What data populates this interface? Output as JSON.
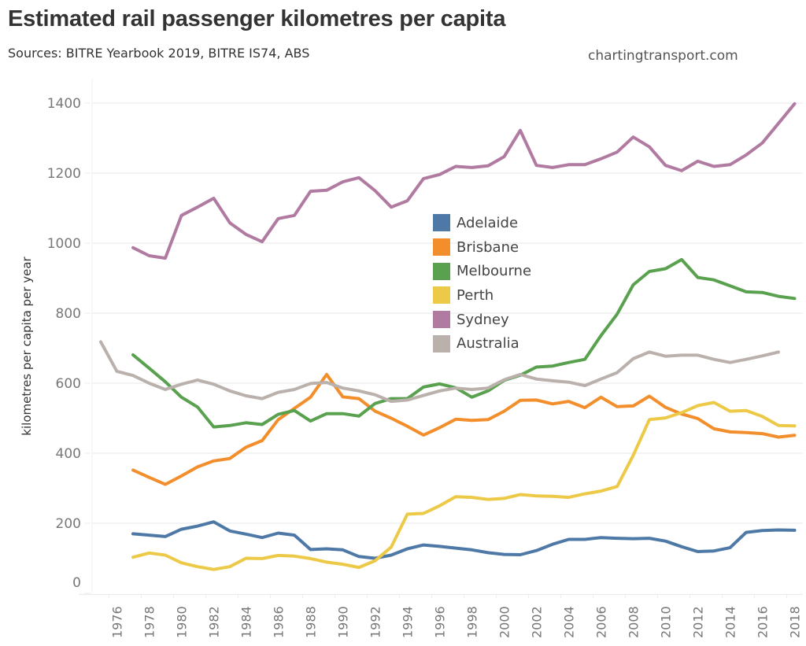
{
  "header": {
    "title": "Estimated rail passenger kilometres per capita",
    "subtitle": "Sources: BITRE Yearbook 2019, BITRE IS74, ABS",
    "credit": "chartingtransport.com"
  },
  "chart_data": {
    "type": "line",
    "title": "Estimated rail passenger kilometres per capita",
    "subtitle": "Sources: BITRE Yearbook 2019, BITRE IS74, ABS",
    "xlabel": "",
    "ylabel": "kilometres per capita per year",
    "xlim": [
      1975,
      2018
    ],
    "ylim": [
      0,
      1400
    ],
    "yticks": [
      0,
      200,
      400,
      600,
      800,
      1000,
      1200,
      1400
    ],
    "xticks": [
      1976,
      1978,
      1980,
      1982,
      1984,
      1986,
      1988,
      1990,
      1992,
      1994,
      1996,
      1998,
      2000,
      2002,
      2004,
      2006,
      2008,
      2010,
      2012,
      2014,
      2016,
      2018
    ],
    "grid": "horizontal",
    "legend_position": "center",
    "series": [
      {
        "name": "Adelaide",
        "color": "#4E79A7",
        "start_year": 1977,
        "values": [
          170,
          166,
          162,
          183,
          192,
          204,
          178,
          169,
          159,
          172,
          166,
          125,
          127,
          124,
          105,
          100,
          109,
          127,
          138,
          134,
          129,
          124,
          116,
          111,
          110,
          122,
          140,
          154,
          154,
          159,
          157,
          156,
          157,
          149,
          133,
          119,
          121,
          130,
          174,
          179,
          181,
          180
        ]
      },
      {
        "name": "Brisbane",
        "color": "#F28E2B",
        "start_year": 1977,
        "values": [
          352,
          331,
          311,
          335,
          361,
          378,
          385,
          417,
          436,
          496,
          528,
          560,
          625,
          561,
          556,
          520,
          500,
          477,
          452,
          473,
          497,
          494,
          496,
          520,
          551,
          552,
          541,
          548,
          530,
          560,
          533,
          535,
          563,
          531,
          512,
          499,
          470,
          461,
          459,
          456,
          446,
          451
        ]
      },
      {
        "name": "Melbourne",
        "color": "#59A14F",
        "start_year": 1977,
        "values": [
          681,
          643,
          604,
          560,
          532,
          475,
          479,
          487,
          482,
          511,
          522,
          492,
          513,
          513,
          506,
          542,
          556,
          556,
          589,
          598,
          587,
          560,
          578,
          608,
          623,
          646,
          649,
          659,
          668,
          736,
          797,
          881,
          919,
          927,
          953,
          902,
          895,
          878,
          861,
          859,
          848,
          842
        ]
      },
      {
        "name": "Perth",
        "color": "#EDC948",
        "start_year": 1977,
        "values": [
          103,
          115,
          109,
          87,
          76,
          68,
          76,
          100,
          99,
          108,
          106,
          99,
          89,
          83,
          74,
          93,
          132,
          226,
          228,
          250,
          276,
          274,
          268,
          271,
          282,
          278,
          277,
          274,
          284,
          292,
          305,
          394,
          496,
          501,
          516,
          536,
          545,
          520,
          522,
          505,
          479,
          478
        ]
      },
      {
        "name": "Sydney",
        "color": "#B07AA1",
        "start_year": 1977,
        "values": [
          987,
          964,
          957,
          1079,
          1103,
          1128,
          1058,
          1025,
          1004,
          1070,
          1079,
          1148,
          1151,
          1175,
          1187,
          1150,
          1103,
          1121,
          1184,
          1196,
          1219,
          1216,
          1221,
          1247,
          1322,
          1222,
          1216,
          1224,
          1224,
          1241,
          1260,
          1303,
          1275,
          1222,
          1207,
          1234,
          1219,
          1224,
          1252,
          1286,
          1342,
          1398
        ]
      },
      {
        "name": "Australia",
        "color": "#BAB0AC",
        "start_year": 1975,
        "values": [
          718,
          634,
          622,
          600,
          582,
          597,
          609,
          597,
          578,
          564,
          556,
          574,
          582,
          599,
          602,
          586,
          578,
          567,
          548,
          552,
          565,
          578,
          586,
          582,
          586,
          610,
          625,
          612,
          607,
          603,
          593,
          612,
          630,
          670,
          689,
          677,
          680,
          680,
          668,
          659,
          668,
          678,
          689
        ]
      }
    ]
  }
}
